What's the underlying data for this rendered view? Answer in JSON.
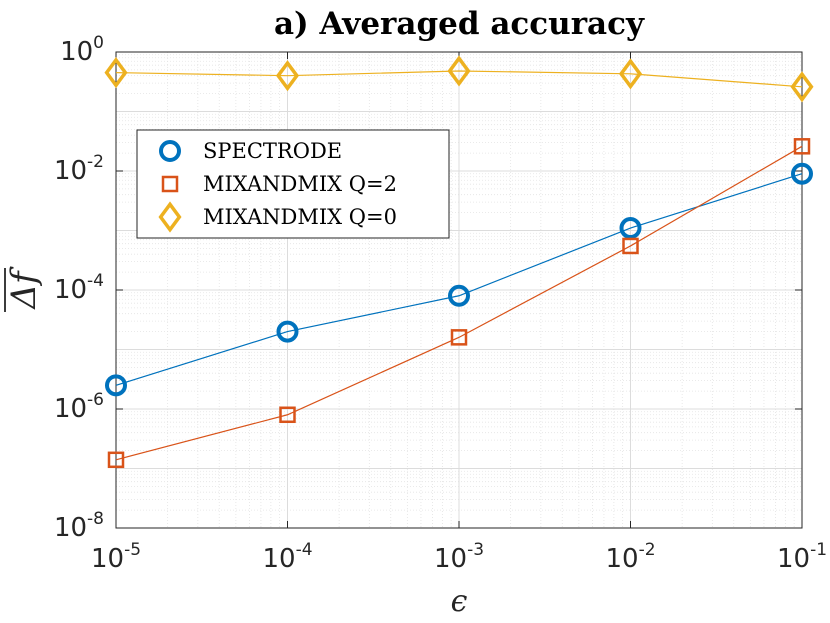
{
  "chart_data": {
    "type": "line",
    "title": "a) Averaged accuracy",
    "xlabel": "ϵ",
    "ylabel": "Δf",
    "xscale": "log",
    "yscale": "log",
    "x": [
      1e-05,
      0.0001,
      0.001,
      0.01,
      0.1
    ],
    "xlim": [
      1e-05,
      0.1
    ],
    "ylim": [
      1e-08,
      1
    ],
    "x_ticks": [
      {
        "base": "10",
        "exp": "-5"
      },
      {
        "base": "10",
        "exp": "-4"
      },
      {
        "base": "10",
        "exp": "-3"
      },
      {
        "base": "10",
        "exp": "-2"
      },
      {
        "base": "10",
        "exp": "-1"
      }
    ],
    "y_ticks": [
      {
        "base": "10",
        "exp": "-8"
      },
      {
        "base": "10",
        "exp": "-6"
      },
      {
        "base": "10",
        "exp": "-4"
      },
      {
        "base": "10",
        "exp": "-2"
      },
      {
        "base": "10",
        "exp": "0"
      }
    ],
    "grid": true,
    "legend_position": "upper-left",
    "series": [
      {
        "name": "SPECTRODE",
        "marker": "circle",
        "color": "#0072BD",
        "values": [
          2.5e-06,
          2e-05,
          8e-05,
          0.0011,
          0.009
        ]
      },
      {
        "name": "MIXANDMIX Q=2",
        "marker": "square",
        "color": "#D95319",
        "values": [
          1.4e-07,
          8e-07,
          1.6e-05,
          0.00055,
          0.026
        ]
      },
      {
        "name": "MIXANDMIX Q=0",
        "marker": "diamond",
        "color": "#EDB120",
        "values": [
          0.45,
          0.4,
          0.48,
          0.43,
          0.26
        ]
      }
    ]
  }
}
